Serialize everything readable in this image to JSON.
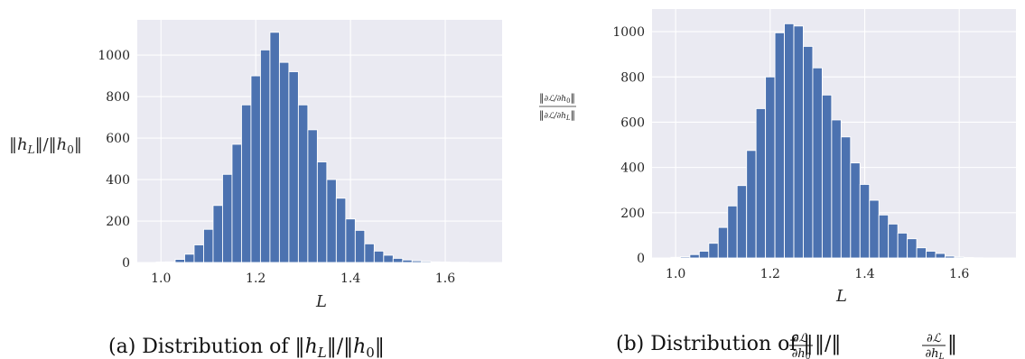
{
  "chart_data": [
    {
      "type": "bar",
      "caption": "(a) Distribution of ‖h_L‖/‖h_0‖",
      "ylabel": "‖h_L‖/‖h_0‖",
      "xlabel": "L",
      "xlim": [
        0.95,
        1.72
      ],
      "ylim": [
        0,
        1170
      ],
      "xticks": [
        1.0,
        1.2,
        1.4,
        1.6
      ],
      "yticks": [
        0,
        200,
        400,
        600,
        800,
        1000
      ],
      "bin_width": 0.02,
      "bin_starts": [
        0.97,
        0.99,
        1.01,
        1.03,
        1.05,
        1.07,
        1.09,
        1.11,
        1.13,
        1.15,
        1.17,
        1.19,
        1.21,
        1.23,
        1.25,
        1.27,
        1.29,
        1.31,
        1.33,
        1.35,
        1.37,
        1.39,
        1.41,
        1.43,
        1.45,
        1.47,
        1.49,
        1.51,
        1.53,
        1.55,
        1.57,
        1.59,
        1.61,
        1.63,
        1.65,
        1.67
      ],
      "values": [
        0,
        2,
        3,
        15,
        40,
        85,
        160,
        275,
        425,
        570,
        760,
        900,
        1025,
        1110,
        965,
        920,
        760,
        640,
        485,
        400,
        310,
        210,
        155,
        90,
        55,
        35,
        20,
        12,
        8,
        5,
        3,
        2,
        1,
        1,
        0,
        0
      ],
      "color": "#4c72b0",
      "background": "#eaeaf2"
    },
    {
      "type": "bar",
      "caption": "(b) Distribution of ‖∂ℒ/∂h_0‖/‖∂ℒ/∂h_L‖",
      "ylabel": "‖∂ℒ/∂h_0‖ / ‖∂ℒ/∂h_L‖",
      "xlabel": "L",
      "xlim": [
        0.95,
        1.72
      ],
      "ylim": [
        0,
        1100
      ],
      "xticks": [
        1.0,
        1.2,
        1.4,
        1.6
      ],
      "yticks": [
        0,
        200,
        400,
        600,
        800,
        1000
      ],
      "bin_width": 0.02,
      "bin_starts": [
        0.97,
        0.99,
        1.01,
        1.03,
        1.05,
        1.07,
        1.09,
        1.11,
        1.13,
        1.15,
        1.17,
        1.19,
        1.21,
        1.23,
        1.25,
        1.27,
        1.29,
        1.31,
        1.33,
        1.35,
        1.37,
        1.39,
        1.41,
        1.43,
        1.45,
        1.47,
        1.49,
        1.51,
        1.53,
        1.55,
        1.57,
        1.59,
        1.61,
        1.63,
        1.65,
        1.67
      ],
      "values": [
        0,
        3,
        5,
        15,
        30,
        65,
        135,
        230,
        320,
        475,
        660,
        800,
        995,
        1035,
        1025,
        935,
        840,
        720,
        610,
        535,
        420,
        325,
        255,
        190,
        150,
        110,
        85,
        45,
        30,
        20,
        8,
        4,
        2,
        1,
        0,
        0
      ],
      "color": "#4c72b0",
      "background": "#eaeaf2"
    }
  ]
}
